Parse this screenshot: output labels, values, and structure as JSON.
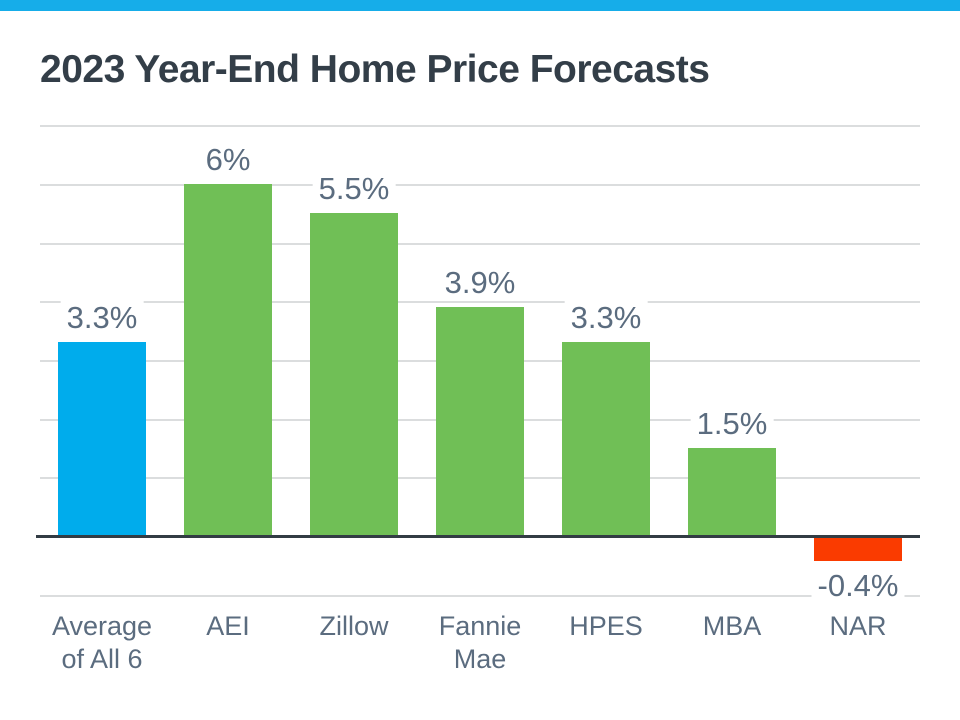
{
  "title": "2023 Year-End Home Price Forecasts",
  "colors": {
    "accent_top_bar": "#16ADE9",
    "blue_bar": "#00ACEC",
    "green_bar": "#70BF56",
    "red_bar": "#FA3B00",
    "title_text": "#333E48",
    "label_text": "#5B6C7F",
    "gridline": "#DBDDDE",
    "axis_line": "#323C44",
    "background": "#FFFFFF"
  },
  "chart_data": {
    "type": "bar",
    "title": "2023 Year-End Home Price Forecasts",
    "categories": [
      "Average\nof All 6",
      "AEI",
      "Zillow",
      "Fannie\nMae",
      "HPES",
      "MBA",
      "NAR"
    ],
    "values": [
      3.3,
      6,
      5.5,
      3.9,
      3.3,
      1.5,
      -0.4
    ],
    "value_labels": [
      "3.3%",
      "6%",
      "5.5%",
      "3.9%",
      "3.3%",
      "1.5%",
      "-0.4%"
    ],
    "bar_colors": [
      "#00ACEC",
      "#70BF56",
      "#70BF56",
      "#70BF56",
      "#70BF56",
      "#70BF56",
      "#FA3B00"
    ],
    "xlabel": "",
    "ylabel": "",
    "ylim": [
      -1,
      7
    ],
    "gridline_values": [
      7,
      6,
      5,
      4,
      3,
      2,
      1,
      -1
    ],
    "grid": true,
    "legend": false,
    "axis_value": 0
  }
}
